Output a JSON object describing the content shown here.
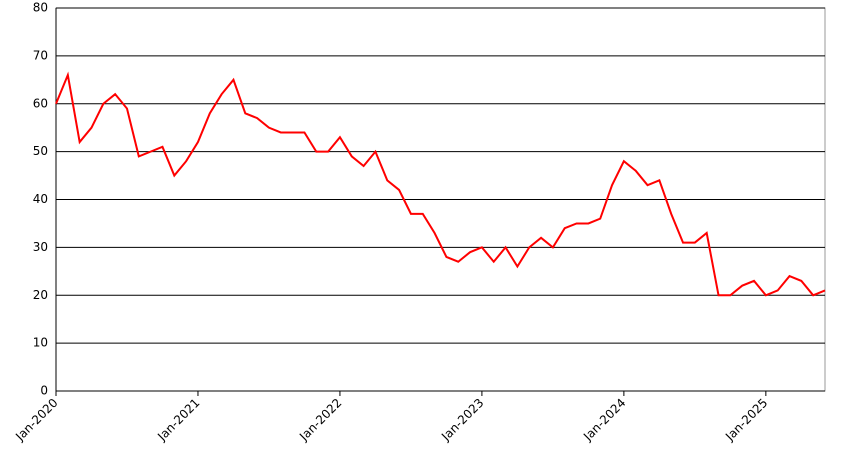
{
  "chart_data": {
    "type": "line",
    "x": [
      "2020-01",
      "2020-02",
      "2020-03",
      "2020-04",
      "2020-05",
      "2020-06",
      "2020-07",
      "2020-08",
      "2020-09",
      "2020-10",
      "2020-11",
      "2020-12",
      "2021-01",
      "2021-02",
      "2021-03",
      "2021-04",
      "2021-05",
      "2021-06",
      "2021-07",
      "2021-08",
      "2021-09",
      "2021-10",
      "2021-11",
      "2021-12",
      "2022-01",
      "2022-02",
      "2022-03",
      "2022-04",
      "2022-05",
      "2022-06",
      "2022-07",
      "2022-08",
      "2022-09",
      "2022-10",
      "2022-11",
      "2022-12",
      "2023-01",
      "2023-02",
      "2023-03",
      "2023-04",
      "2023-05",
      "2023-06",
      "2023-07",
      "2023-08",
      "2023-09",
      "2023-10",
      "2023-11",
      "2023-12",
      "2024-01",
      "2024-02",
      "2024-03",
      "2024-04",
      "2024-05",
      "2024-06",
      "2024-07",
      "2024-08",
      "2024-09",
      "2024-10",
      "2024-11",
      "2024-12",
      "2025-01",
      "2025-02",
      "2025-03",
      "2025-04",
      "2025-05",
      "2025-06"
    ],
    "series": [
      {
        "color": "#ff0000",
        "values": [
          60,
          66,
          52,
          55,
          60,
          62,
          59,
          49,
          50,
          51,
          45,
          48,
          52,
          58,
          62,
          65,
          58,
          57,
          55,
          54,
          54,
          54,
          50,
          50,
          53,
          49,
          47,
          50,
          44,
          42,
          37,
          37,
          33,
          28,
          27,
          29,
          30,
          27,
          30,
          26,
          30,
          32,
          30,
          34,
          35,
          35,
          36,
          43,
          48,
          46,
          43,
          44,
          37,
          31,
          31,
          33,
          20,
          20,
          22,
          23,
          20,
          21,
          24,
          23,
          20,
          21
        ]
      }
    ],
    "xlim": [
      "2020-01",
      "2025-06"
    ],
    "xticks": [
      {
        "value": "2020-01",
        "label": "Jan-2020"
      },
      {
        "value": "2021-01",
        "label": "Jan-2021"
      },
      {
        "value": "2022-01",
        "label": "Jan-2022"
      },
      {
        "value": "2023-01",
        "label": "Jan-2023"
      },
      {
        "value": "2024-01",
        "label": "Jan-2024"
      },
      {
        "value": "2025-01",
        "label": "Jan-2025"
      }
    ],
    "ylim": [
      0,
      80
    ],
    "yticks": [
      0,
      10,
      20,
      30,
      40,
      50,
      60,
      70,
      80
    ],
    "grid": true
  }
}
